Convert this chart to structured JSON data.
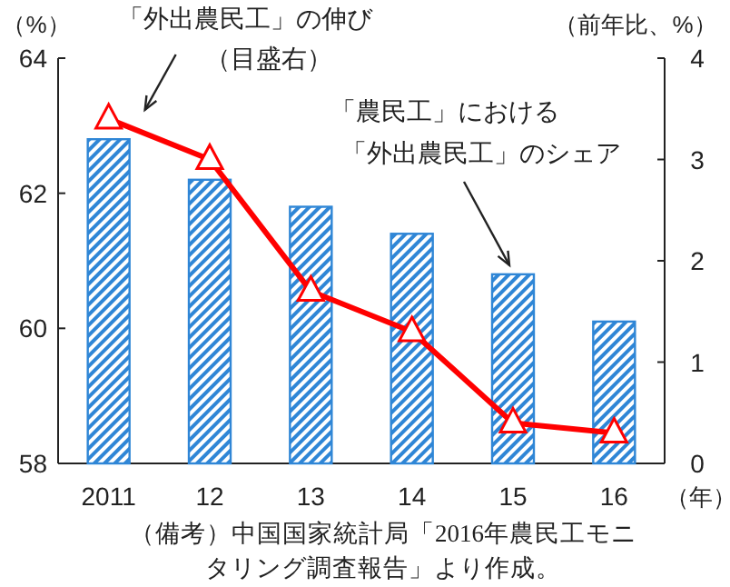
{
  "chart_data": {
    "type": "bar",
    "categories": [
      "2011",
      "12",
      "13",
      "14",
      "15",
      "16"
    ],
    "series": [
      {
        "color": "#2f86d6",
        "values": [
          62.8,
          62.2,
          61.8,
          61.4,
          60.8,
          60.1
        ]
      },
      {
        "type": "line",
        "axis": "y2",
        "color": "#ff0000",
        "marker": "triangle",
        "values": [
          3.4,
          3.0,
          1.7,
          1.3,
          0.4,
          0.3
        ]
      }
    ],
    "ylim": [
      58,
      64
    ],
    "yticks": [
      58,
      60,
      62,
      64
    ],
    "y2lim": [
      0,
      4
    ],
    "y2ticks": [
      0,
      1,
      2,
      3,
      4
    ],
    "ylabel": "（%）",
    "y2label": "（前年比、%）",
    "xlabel": "（年）",
    "annotations": [
      "「外出農民工」の伸び",
      "（目盛右）",
      "「農民工」における",
      "「外出農民工」のシェア",
      "（備考）中国国家統計局「2016年農民工モニタリング調査報告」より作成。"
    ],
    "grid": false
  }
}
